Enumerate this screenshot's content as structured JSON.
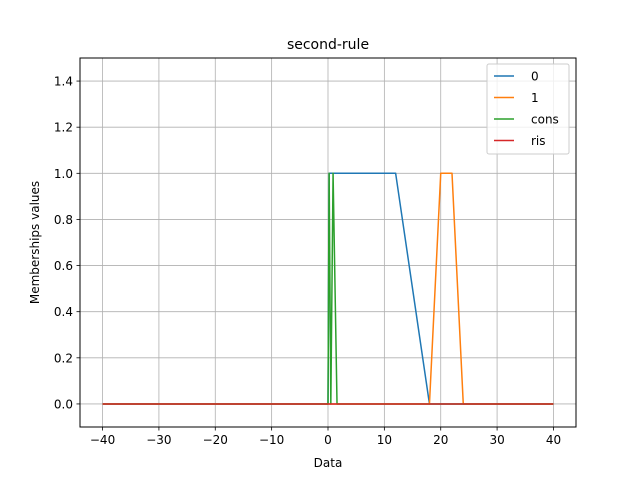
{
  "chart_data": {
    "type": "line",
    "title": "second-rule",
    "xlabel": "Data",
    "ylabel": "Memberships values",
    "xlim": [
      -44,
      44
    ],
    "ylim": [
      -0.1,
      1.5
    ],
    "x_ticks": [
      -40,
      -30,
      -20,
      -10,
      0,
      10,
      20,
      30,
      40
    ],
    "x_tick_labels": [
      "−40",
      "−30",
      "−20",
      "−10",
      "0",
      "10",
      "20",
      "30",
      "40"
    ],
    "y_ticks": [
      0.0,
      0.2,
      0.4,
      0.6,
      0.8,
      1.0,
      1.2,
      1.4
    ],
    "y_tick_labels": [
      "0.0",
      "0.2",
      "0.4",
      "0.6",
      "0.8",
      "1.0",
      "1.2",
      "1.4"
    ],
    "grid": true,
    "legend_position": "top-right",
    "series": [
      {
        "name": "0",
        "color": "#1f77b4",
        "points": [
          [
            -40,
            0
          ],
          [
            0,
            0
          ],
          [
            0.2,
            1
          ],
          [
            12,
            1
          ],
          [
            18,
            0
          ],
          [
            40,
            0
          ]
        ]
      },
      {
        "name": "1",
        "color": "#ff7f0e",
        "points": [
          [
            -40,
            0
          ],
          [
            18,
            0
          ],
          [
            20,
            1
          ],
          [
            22,
            1
          ],
          [
            24,
            0
          ],
          [
            40,
            0
          ]
        ]
      },
      {
        "name": "cons",
        "color": "#2ca02c",
        "points": [
          [
            -40,
            0
          ],
          [
            0,
            0
          ],
          [
            0.2,
            1
          ],
          [
            0.5,
            0
          ],
          [
            0.9,
            1
          ],
          [
            1.6,
            0
          ],
          [
            40,
            0
          ]
        ]
      },
      {
        "name": "ris",
        "color": "#d62728",
        "points": [
          [
            -40,
            0
          ],
          [
            40,
            0
          ]
        ]
      }
    ]
  }
}
